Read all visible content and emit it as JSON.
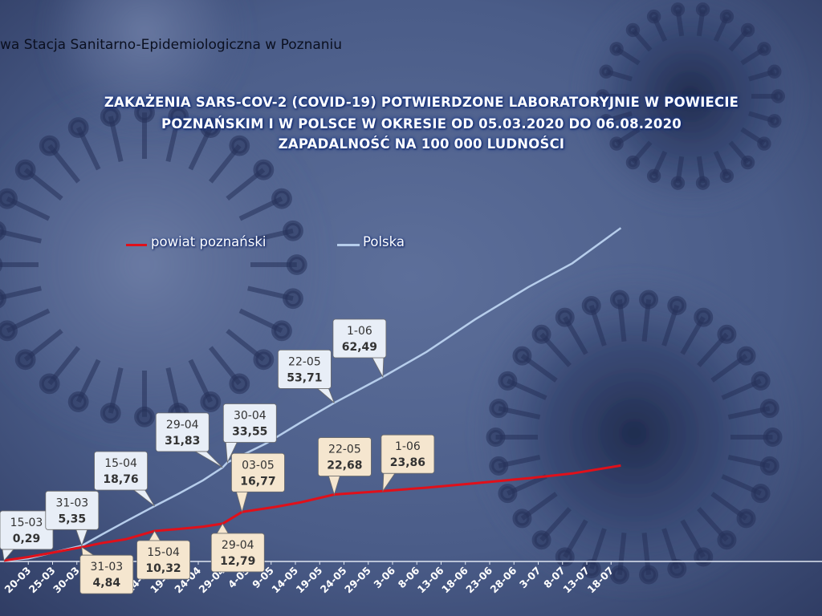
{
  "header": {
    "org": "wa Stacja Sanitarno-Epidemiologiczna w Poznaniu"
  },
  "colors": {
    "powiat": "#e0101a",
    "polska": "#b6cdeb",
    "axis": "#dfe6f2",
    "powiat_label_bg": "#f5e6cf",
    "polska_label_bg": "#e8eef7"
  },
  "chart_data": {
    "type": "line",
    "title_lines": [
      "ZAKAŻENIA SARS-COV-2 (COVID-19) POTWIERDZONE LABORATORYJNIE W POWIECIE",
      "POZNAŃSKIM I W POLSCE W OKRESIE OD 05.03.2020 DO 06.08.2020",
      "ZAPADALNOŚĆ NA 100 000 LUDNOŚCI"
    ],
    "legend": [
      {
        "name": "powiat poznański",
        "color": "#e0101a"
      },
      {
        "name": "Polska",
        "color": "#b6cdeb"
      }
    ],
    "x_ticks": [
      "20-03",
      "25-03",
      "30-03",
      "4-04",
      "9-04",
      "14-04",
      "19-04",
      "24-04",
      "29-04",
      "4-05",
      "9-05",
      "14-05",
      "19-05",
      "24-05",
      "29-05",
      "3-06",
      "8-06",
      "13-06",
      "18-06",
      "23-06",
      "28-06",
      "3-07",
      "8-07",
      "13-07",
      "18-07"
    ],
    "series": [
      {
        "name": "powiat poznański",
        "points": [
          [
            "15-03",
            0.29
          ],
          [
            "20-03",
            1.5
          ],
          [
            "25-03",
            3.0
          ],
          [
            "31-03",
            4.84
          ],
          [
            "4-04",
            6.2
          ],
          [
            "9-04",
            7.5
          ],
          [
            "15-04",
            10.32
          ],
          [
            "20-04",
            11.0
          ],
          [
            "25-04",
            11.8
          ],
          [
            "29-04",
            12.79
          ],
          [
            "3-05",
            16.77
          ],
          [
            "10-05",
            18.5
          ],
          [
            "15-05",
            20.0
          ],
          [
            "22-05",
            22.68
          ],
          [
            "1-06",
            23.86
          ],
          [
            "10-06",
            25.0
          ],
          [
            "20-06",
            26.5
          ],
          [
            "1-07",
            28.2
          ],
          [
            "10-07",
            29.8
          ],
          [
            "20-07",
            32.5
          ]
        ]
      },
      {
        "name": "Polska",
        "points": [
          [
            "15-03",
            0.29
          ],
          [
            "20-03",
            1.0
          ],
          [
            "25-03",
            3.0
          ],
          [
            "31-03",
            5.35
          ],
          [
            "4-04",
            9.0
          ],
          [
            "9-04",
            13.5
          ],
          [
            "15-04",
            18.76
          ],
          [
            "20-04",
            23.0
          ],
          [
            "25-04",
            27.5
          ],
          [
            "29-04",
            31.83
          ],
          [
            "30-04",
            33.55
          ],
          [
            "8-05",
            40.0
          ],
          [
            "15-05",
            47.0
          ],
          [
            "22-05",
            53.71
          ],
          [
            "1-06",
            62.49
          ],
          [
            "10-06",
            71.0
          ],
          [
            "20-06",
            82.0
          ],
          [
            "1-07",
            93.0
          ],
          [
            "10-07",
            101.0
          ],
          [
            "20-07",
            113.0
          ]
        ]
      }
    ],
    "callouts": [
      {
        "series": "Polska",
        "date": "15-03",
        "value": "0,29"
      },
      {
        "series": "Polska",
        "date": "31-03",
        "value": "5,35"
      },
      {
        "series": "Polska",
        "date": "15-04",
        "value": "18,76"
      },
      {
        "series": "Polska",
        "date": "29-04",
        "value": "31,83"
      },
      {
        "series": "Polska",
        "date": "30-04",
        "value": "33,55"
      },
      {
        "series": "Polska",
        "date": "22-05",
        "value": "53,71"
      },
      {
        "series": "Polska",
        "date": "1-06",
        "value": "62,49"
      },
      {
        "series": "powiat poznański",
        "date": "31-03",
        "value": "4,84"
      },
      {
        "series": "powiat poznański",
        "date": "15-04",
        "value": "10,32"
      },
      {
        "series": "powiat poznański",
        "date": "29-04",
        "value": "12,79"
      },
      {
        "series": "powiat poznański",
        "date": "03-05",
        "value": "16,77"
      },
      {
        "series": "powiat poznański",
        "date": "22-05",
        "value": "22,68"
      },
      {
        "series": "powiat poznański",
        "date": "1-06",
        "value": "23,86"
      }
    ]
  }
}
